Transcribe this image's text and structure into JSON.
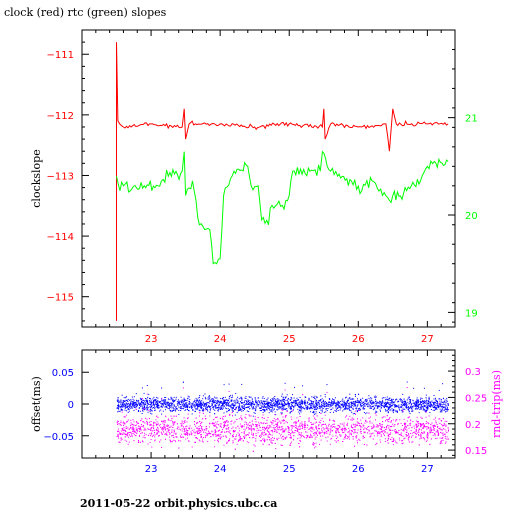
{
  "title": "clock (red) rtc (green) slopes",
  "footer": "2011-05-22  orbit.physics.ubc.ca",
  "colors": {
    "red": "#ff0000",
    "green": "#00ff00",
    "blue": "#0000ff",
    "magenta": "#ff00ff",
    "axis": "#000000"
  },
  "chart_data": [
    {
      "type": "line",
      "title": "clock (red) rtc (green) slopes",
      "xlabel": "",
      "ylabel": "clockslope",
      "xlim": [
        22.0,
        27.4
      ],
      "ylim": [
        -115.5,
        -110.6
      ],
      "y2lim": [
        18.85,
        21.9
      ],
      "grid": false,
      "x_ticks": [
        23,
        24,
        25,
        26,
        27
      ],
      "y_ticks": [
        -111,
        -112,
        -113,
        -114,
        -115
      ],
      "y2_ticks": [
        19,
        20,
        21
      ],
      "series": [
        {
          "name": "clock",
          "axis": "left",
          "color": "#ff0000",
          "points": [
            [
              22.5,
              -115.4
            ],
            [
              22.5,
              -110.8
            ],
            [
              22.52,
              -112.1
            ],
            [
              22.6,
              -112.2
            ],
            [
              23.0,
              -112.15
            ],
            [
              23.45,
              -112.2
            ],
            [
              23.48,
              -111.9
            ],
            [
              23.5,
              -112.4
            ],
            [
              23.55,
              -112.15
            ],
            [
              24.0,
              -112.15
            ],
            [
              24.5,
              -112.2
            ],
            [
              25.0,
              -112.15
            ],
            [
              25.48,
              -112.2
            ],
            [
              25.5,
              -111.9
            ],
            [
              25.52,
              -112.4
            ],
            [
              25.6,
              -112.15
            ],
            [
              26.0,
              -112.2
            ],
            [
              26.4,
              -112.15
            ],
            [
              26.45,
              -112.6
            ],
            [
              26.5,
              -111.9
            ],
            [
              26.55,
              -112.15
            ],
            [
              27.0,
              -112.15
            ],
            [
              27.3,
              -112.15
            ]
          ]
        },
        {
          "name": "rtc",
          "axis": "right",
          "color": "#00ff00",
          "points": [
            [
              22.5,
              20.4
            ],
            [
              22.55,
              20.25
            ],
            [
              22.6,
              20.3
            ],
            [
              22.7,
              20.25
            ],
            [
              22.9,
              20.3
            ],
            [
              23.1,
              20.3
            ],
            [
              23.25,
              20.4
            ],
            [
              23.45,
              20.45
            ],
            [
              23.48,
              20.65
            ],
            [
              23.5,
              20.2
            ],
            [
              23.6,
              20.35
            ],
            [
              23.65,
              20.15
            ],
            [
              23.7,
              19.9
            ],
            [
              23.85,
              19.85
            ],
            [
              23.9,
              19.5
            ],
            [
              24.0,
              19.55
            ],
            [
              24.05,
              20.2
            ],
            [
              24.2,
              20.45
            ],
            [
              24.4,
              20.5
            ],
            [
              24.45,
              20.3
            ],
            [
              24.55,
              20.3
            ],
            [
              24.6,
              19.95
            ],
            [
              24.7,
              19.9
            ],
            [
              24.75,
              20.1
            ],
            [
              24.9,
              20.1
            ],
            [
              25.0,
              20.2
            ],
            [
              25.05,
              20.45
            ],
            [
              25.3,
              20.45
            ],
            [
              25.45,
              20.45
            ],
            [
              25.48,
              20.65
            ],
            [
              25.55,
              20.5
            ],
            [
              25.7,
              20.4
            ],
            [
              25.9,
              20.35
            ],
            [
              26.05,
              20.25
            ],
            [
              26.2,
              20.35
            ],
            [
              26.35,
              20.2
            ],
            [
              26.45,
              20.15
            ],
            [
              26.5,
              20.2
            ],
            [
              26.7,
              20.25
            ],
            [
              26.9,
              20.35
            ],
            [
              27.0,
              20.5
            ],
            [
              27.1,
              20.55
            ],
            [
              27.3,
              20.55
            ]
          ]
        }
      ]
    },
    {
      "type": "scatter",
      "xlabel": "",
      "ylabel": "offset(ms)",
      "y2label": "rnd-trip(ms)",
      "xlim": [
        22.0,
        27.4
      ],
      "ylim": [
        -0.085,
        0.085
      ],
      "y2lim": [
        0.135,
        0.34
      ],
      "grid": false,
      "x_ticks": [
        23,
        24,
        25,
        26,
        27
      ],
      "y_ticks": [
        0.05,
        0,
        -0.05
      ],
      "y_tick_labels": [
        "0.05",
        "0",
        "−0.05"
      ],
      "y2_ticks": [
        0.15,
        0.2,
        0.25,
        0.3
      ],
      "series": [
        {
          "name": "offset",
          "axis": "left",
          "color": "#0000ff",
          "x_range": [
            22.5,
            27.3
          ],
          "center": 0.0,
          "spread": 0.008
        },
        {
          "name": "rnd-trip",
          "axis": "right",
          "color": "#ff00ff",
          "x_range": [
            22.5,
            27.3
          ],
          "center": 0.19,
          "spread": 0.018
        }
      ]
    }
  ]
}
